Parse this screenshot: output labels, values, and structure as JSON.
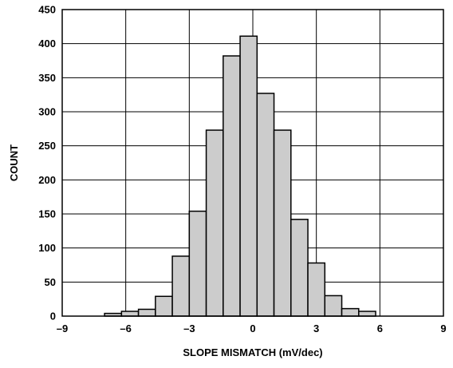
{
  "chart_data": {
    "type": "bar",
    "title": "",
    "xlabel": "SLOPE MISMATCH (mV/dec)",
    "ylabel": "COUNT",
    "xlim": [
      -9,
      9
    ],
    "ylim": [
      0,
      450
    ],
    "xticks": [
      -9,
      -6,
      -3,
      0,
      3,
      6,
      9
    ],
    "xtick_labels": [
      "–9",
      "–6",
      "–3",
      "0",
      "3",
      "6",
      "9"
    ],
    "yticks": [
      0,
      50,
      100,
      150,
      200,
      250,
      300,
      350,
      400,
      450
    ],
    "ytick_labels": [
      "0",
      "50",
      "100",
      "150",
      "200",
      "250",
      "300",
      "350",
      "400",
      "450"
    ],
    "grid": true,
    "bar_fill": "#cccccc",
    "bar_stroke": "#000000",
    "bins": [
      {
        "x0": -7.0,
        "x1": -6.2,
        "count": 4
      },
      {
        "x0": -6.2,
        "x1": -5.4,
        "count": 7
      },
      {
        "x0": -5.4,
        "x1": -4.6,
        "count": 10
      },
      {
        "x0": -4.6,
        "x1": -3.8,
        "count": 29
      },
      {
        "x0": -3.8,
        "x1": -3.0,
        "count": 88
      },
      {
        "x0": -3.0,
        "x1": -2.2,
        "count": 154
      },
      {
        "x0": -2.2,
        "x1": -1.4,
        "count": 273
      },
      {
        "x0": -1.4,
        "x1": -0.6,
        "count": 382
      },
      {
        "x0": -0.6,
        "x1": 0.2,
        "count": 411
      },
      {
        "x0": 0.2,
        "x1": 1.0,
        "count": 327
      },
      {
        "x0": 1.0,
        "x1": 1.8,
        "count": 273
      },
      {
        "x0": 1.8,
        "x1": 2.6,
        "count": 142
      },
      {
        "x0": 2.6,
        "x1": 3.4,
        "count": 78
      },
      {
        "x0": 3.4,
        "x1": 4.2,
        "count": 30
      },
      {
        "x0": 4.2,
        "x1": 5.0,
        "count": 11
      },
      {
        "x0": 5.0,
        "x1": 5.8,
        "count": 7
      },
      {
        "x0": 5.8,
        "x1": 6.6,
        "count": 0
      }
    ]
  }
}
